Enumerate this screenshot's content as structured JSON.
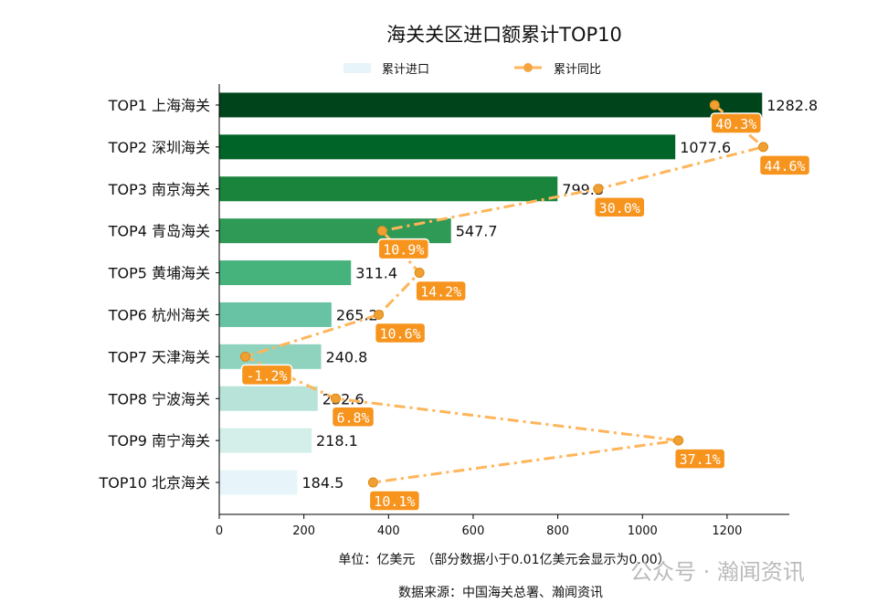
{
  "chart_data": {
    "type": "bar",
    "orientation": "horizontal",
    "title": "海关关区进口额累计TOP10",
    "categories": [
      "TOP1 上海海关",
      "TOP2 深圳海关",
      "TOP3 南京海关",
      "TOP4 青岛海关",
      "TOP5 黄埔海关",
      "TOP6 杭州海关",
      "TOP7 天津海关",
      "TOP8 宁波海关",
      "TOP9 南宁海关",
      "TOP10 北京海关"
    ],
    "series": [
      {
        "name": "累计进口",
        "type": "bar",
        "values": [
          1282.8,
          1077.6,
          799.3,
          547.7,
          311.4,
          265.2,
          240.8,
          232.6,
          218.1,
          184.5
        ],
        "colors": [
          "#00441b",
          "#006428",
          "#1a843d",
          "#2f9a55",
          "#46b37d",
          "#67c3a3",
          "#8fd3bf",
          "#b8e3d8",
          "#d4efe9",
          "#e7f5fa"
        ]
      },
      {
        "name": "累计同比",
        "type": "line",
        "unit": "%",
        "values": [
          40.3,
          44.6,
          30.0,
          10.9,
          14.2,
          10.6,
          -1.2,
          6.8,
          37.1,
          10.1
        ],
        "color": "#ffb55a",
        "label_color": "#f7941d"
      }
    ],
    "xlim": [
      0,
      1347
    ],
    "growth_axis_range": [
      -3.5,
      46.9
    ],
    "xticks": [
      0,
      200,
      400,
      600,
      800,
      1000,
      1200
    ],
    "xlabel": "单位：亿美元　（部分数据小于0.01亿美元会显示为0.00）",
    "source": "数据来源：中国海关总署、瀚闻资讯",
    "legend": {
      "placement": "top-center",
      "items": [
        "累计进口",
        "累计同比"
      ]
    },
    "grid": false
  },
  "watermark": "公众号 · 瀚闻资讯"
}
